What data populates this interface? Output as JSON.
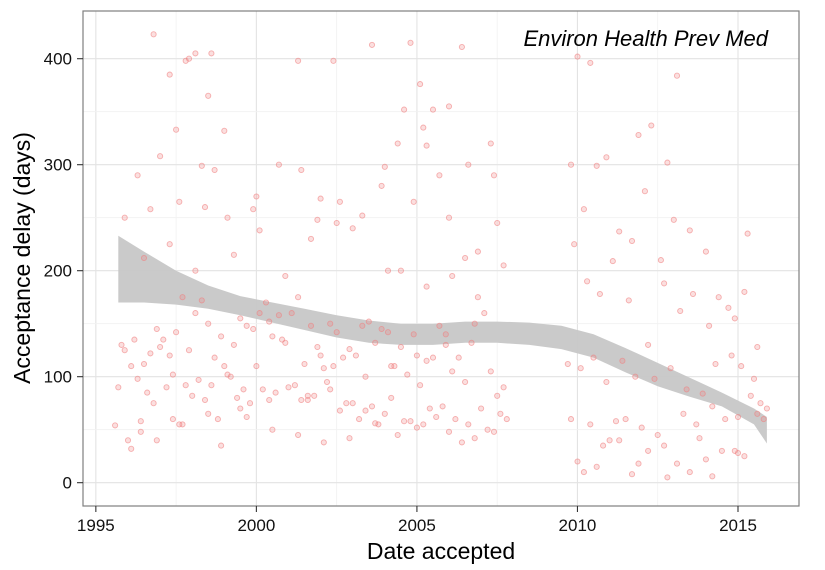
{
  "chart_data": {
    "type": "scatter",
    "title": "Environ Health Prev Med",
    "xlabel": "Date accepted",
    "ylabel": "Acceptance delay (days)",
    "xlim": [
      1994.6,
      2016.9
    ],
    "ylim": [
      -22,
      445
    ],
    "x_ticks": [
      1995,
      2000,
      2005,
      2010,
      2015
    ],
    "y_ticks": [
      0,
      100,
      200,
      300,
      400
    ],
    "grid": true,
    "point_color": "#f08080",
    "point_fill_opacity": 0.25,
    "band_color": "#c7c7c7",
    "series": [
      {
        "points_x": [
          1996.8,
          1997.3,
          1997.5,
          1997.8,
          1997.9,
          1998.1,
          1998.3,
          1998.6,
          1998.5,
          1999.0,
          2001.3,
          2002.4,
          2003.6,
          2004.8,
          2005.1,
          2005.5,
          2006.0,
          2006.4,
          2010.0,
          2010.4,
          2013.1,
          2012.8,
          2012.3,
          2011.9,
          2009.8,
          2010.2,
          2010.6,
          2010.9,
          2011.3,
          2011.7,
          2012.1,
          2012.6,
          2013.0,
          2013.5,
          2014.0,
          2014.4,
          2014.9,
          2015.3,
          2015.6,
          2015.9,
          2015.2,
          2014.7,
          2014.1,
          2013.6,
          2013.2,
          2012.7,
          2012.2,
          2011.6,
          2011.1,
          2010.7,
          2010.3,
          2009.9,
          2009.7,
          2010.1,
          2010.5,
          2010.9,
          2011.4,
          2011.8,
          2012.4,
          2012.9,
          2013.4,
          2013.9,
          2014.3,
          2014.8,
          2015.1,
          2015.5,
          2015.7,
          2015.0,
          2014.6,
          2014.2,
          2013.7,
          2013.3,
          2012.5,
          2012.0,
          2011.5,
          2011.0,
          2010.8,
          2010.4,
          2009.8,
          2010.0,
          2011.2,
          2011.9,
          2012.7,
          2013.8,
          2014.5,
          2015.2,
          2015.8,
          2015.4,
          2014.9,
          2014.0,
          2013.1,
          2012.2,
          2011.3,
          2010.6,
          2010.2,
          2011.7,
          2012.8,
          2013.5,
          2014.2,
          2015.0,
          2015.6,
          1995.7,
          1995.9,
          1996.1,
          1996.3,
          1996.5,
          1996.7,
          1996.9,
          1997.1,
          1997.3,
          1997.5,
          1997.7,
          1997.9,
          1998.1,
          1998.3,
          1998.5,
          1998.7,
          1998.9,
          1999.1,
          1999.3,
          1999.5,
          1999.7,
          1999.9,
          2000.1,
          2000.3,
          2000.5,
          2000.7,
          2000.9,
          2001.1,
          2001.3,
          2001.5,
          2001.7,
          2001.9,
          2002.1,
          2002.3,
          2002.5,
          2002.7,
          2002.9,
          2003.1,
          2003.3,
          2003.5,
          2003.7,
          2003.9,
          2004.1,
          2004.3,
          2004.5,
          2004.7,
          2004.9,
          2005.1,
          2005.3,
          2005.5,
          2005.7,
          2005.9,
          2006.1,
          2006.3,
          2006.5,
          2006.7,
          2006.9,
          2007.1,
          2007.3,
          2007.5,
          2007.7,
          1995.8,
          1996.2,
          1996.6,
          1997.0,
          1997.4,
          1997.8,
          1998.2,
          1998.6,
          1999.0,
          1999.4,
          1999.8,
          2000.2,
          2000.6,
          2001.0,
          2001.4,
          2001.8,
          2002.2,
          2002.6,
          2003.0,
          2003.4,
          2003.8,
          2004.2,
          2004.6,
          2005.0,
          2005.4,
          2005.8,
          2006.2,
          2006.6,
          2007.0,
          2007.4,
          2007.8,
          1996.0,
          1996.4,
          1996.8,
          1997.2,
          1997.6,
          1998.0,
          1998.4,
          1998.8,
          1999.2,
          1999.6,
          2000.0,
          2000.4,
          2000.8,
          2001.2,
          2001.6,
          2002.0,
          2002.4,
          2002.8,
          2003.2,
          2003.6,
          2004.0,
          2004.4,
          2004.8,
          2005.2,
          2005.6,
          2006.0,
          2006.4,
          2006.8,
          2007.2,
          2007.6,
          1996.1,
          1996.9,
          1997.7,
          1998.9,
          1999.7,
          2000.5,
          2001.3,
          2002.1,
          2002.9,
          2003.7,
          2004.5,
          2005.3,
          2006.1,
          2006.9,
          2007.7,
          1996.5,
          1997.3,
          1998.1,
          1999.3,
          2000.1,
          2000.9,
          2001.7,
          2002.5,
          2003.3,
          2004.1,
          2004.9,
          2005.7,
          2006.5,
          2007.3,
          1997.0,
          1998.4,
          2000.0,
          2001.4,
          2003.0,
          2004.4,
          2006.0,
          2007.4,
          1996.3,
          1999.1,
          2002.0,
          2004.0,
          2006.6,
          2005.3,
          2005.2,
          2004.6,
          2003.9,
          2002.6,
          2001.9,
          2000.7,
          1999.9,
          1998.7,
          1997.6,
          1996.7,
          1995.9,
          2007.5,
          2006.8,
          2005.9,
          2005.0,
          2004.2,
          2003.4,
          2002.3,
          2001.6,
          2000.4,
          1999.5,
          1998.5,
          1997.4,
          1996.4,
          1995.6
        ],
        "points_y": [
          423,
          385,
          333,
          398,
          400,
          405,
          299,
          405,
          365,
          332,
          398,
          398,
          413,
          415,
          376,
          352,
          355,
          411,
          402,
          396,
          384,
          302,
          337,
          328,
          300,
          258,
          299,
          307,
          237,
          228,
          275,
          210,
          248,
          238,
          218,
          175,
          155,
          235,
          128,
          70,
          180,
          165,
          148,
          178,
          162,
          188,
          130,
          172,
          209,
          178,
          190,
          225,
          112,
          108,
          118,
          95,
          115,
          100,
          98,
          108,
          88,
          84,
          112,
          120,
          110,
          98,
          75,
          62,
          60,
          72,
          55,
          65,
          45,
          52,
          60,
          40,
          35,
          55,
          60,
          20,
          58,
          18,
          35,
          42,
          30,
          25,
          60,
          82,
          30,
          22,
          18,
          30,
          40,
          15,
          10,
          8,
          5,
          10,
          6,
          28,
          65,
          90,
          125,
          110,
          98,
          112,
          122,
          145,
          135,
          120,
          142,
          175,
          125,
          160,
          172,
          150,
          118,
          138,
          102,
          130,
          155,
          148,
          145,
          160,
          170,
          138,
          158,
          132,
          160,
          175,
          112,
          148,
          128,
          108,
          150,
          142,
          118,
          126,
          120,
          148,
          152,
          132,
          145,
          142,
          110,
          128,
          102,
          140,
          92,
          115,
          118,
          148,
          130,
          105,
          118,
          95,
          132,
          175,
          160,
          105,
          82,
          90,
          130,
          135,
          85,
          128,
          102,
          92,
          97,
          92,
          110,
          80,
          75,
          88,
          85,
          90,
          78,
          82,
          95,
          68,
          75,
          68,
          55,
          80,
          58,
          52,
          70,
          72,
          60,
          55,
          70,
          48,
          60,
          40,
          48,
          75,
          90,
          55,
          82,
          78,
          60,
          100,
          88,
          110,
          152,
          135,
          92,
          78,
          120,
          110,
          75,
          60,
          72,
          65,
          45,
          58,
          55,
          62,
          48,
          38,
          42,
          50,
          65,
          32,
          40,
          55,
          35,
          62,
          50,
          45,
          38,
          42,
          56,
          200,
          185,
          195,
          218,
          205,
          212,
          225,
          200,
          215,
          238,
          195,
          230,
          245,
          252,
          200,
          265,
          290,
          212,
          320,
          308,
          260,
          270,
          295,
          240,
          320,
          250,
          290,
          290,
          250,
          268,
          298,
          300,
          318,
          335,
          352,
          280,
          265,
          248,
          300,
          258,
          295,
          265,
          258,
          250,
          245,
          150,
          140,
          120,
          110,
          100,
          88,
          82,
          78,
          70,
          65,
          60,
          58,
          54,
          50,
          48,
          45,
          42,
          40,
          38,
          35,
          30,
          28,
          26,
          24,
          22
        ]
      }
    ],
    "smooth_band": {
      "x": [
        1995.7,
        1996.5,
        1997.5,
        1998.5,
        1999.5,
        2000.5,
        2001.5,
        2002.5,
        2003.5,
        2004.5,
        2005.5,
        2006.5,
        2007.5,
        2008.5,
        2009.5,
        2010.5,
        2011.5,
        2012.5,
        2013.5,
        2014.5,
        2015.5,
        2015.9
      ],
      "upper": [
        233,
        218,
        200,
        186,
        176,
        170,
        164,
        158,
        153,
        150,
        150,
        152,
        152,
        151,
        148,
        140,
        127,
        113,
        99,
        85,
        70,
        62
      ],
      "lower": [
        170,
        170,
        168,
        164,
        158,
        151,
        144,
        137,
        132,
        130,
        130,
        132,
        132,
        130,
        126,
        118,
        104,
        91,
        81,
        72,
        55,
        37
      ]
    }
  }
}
